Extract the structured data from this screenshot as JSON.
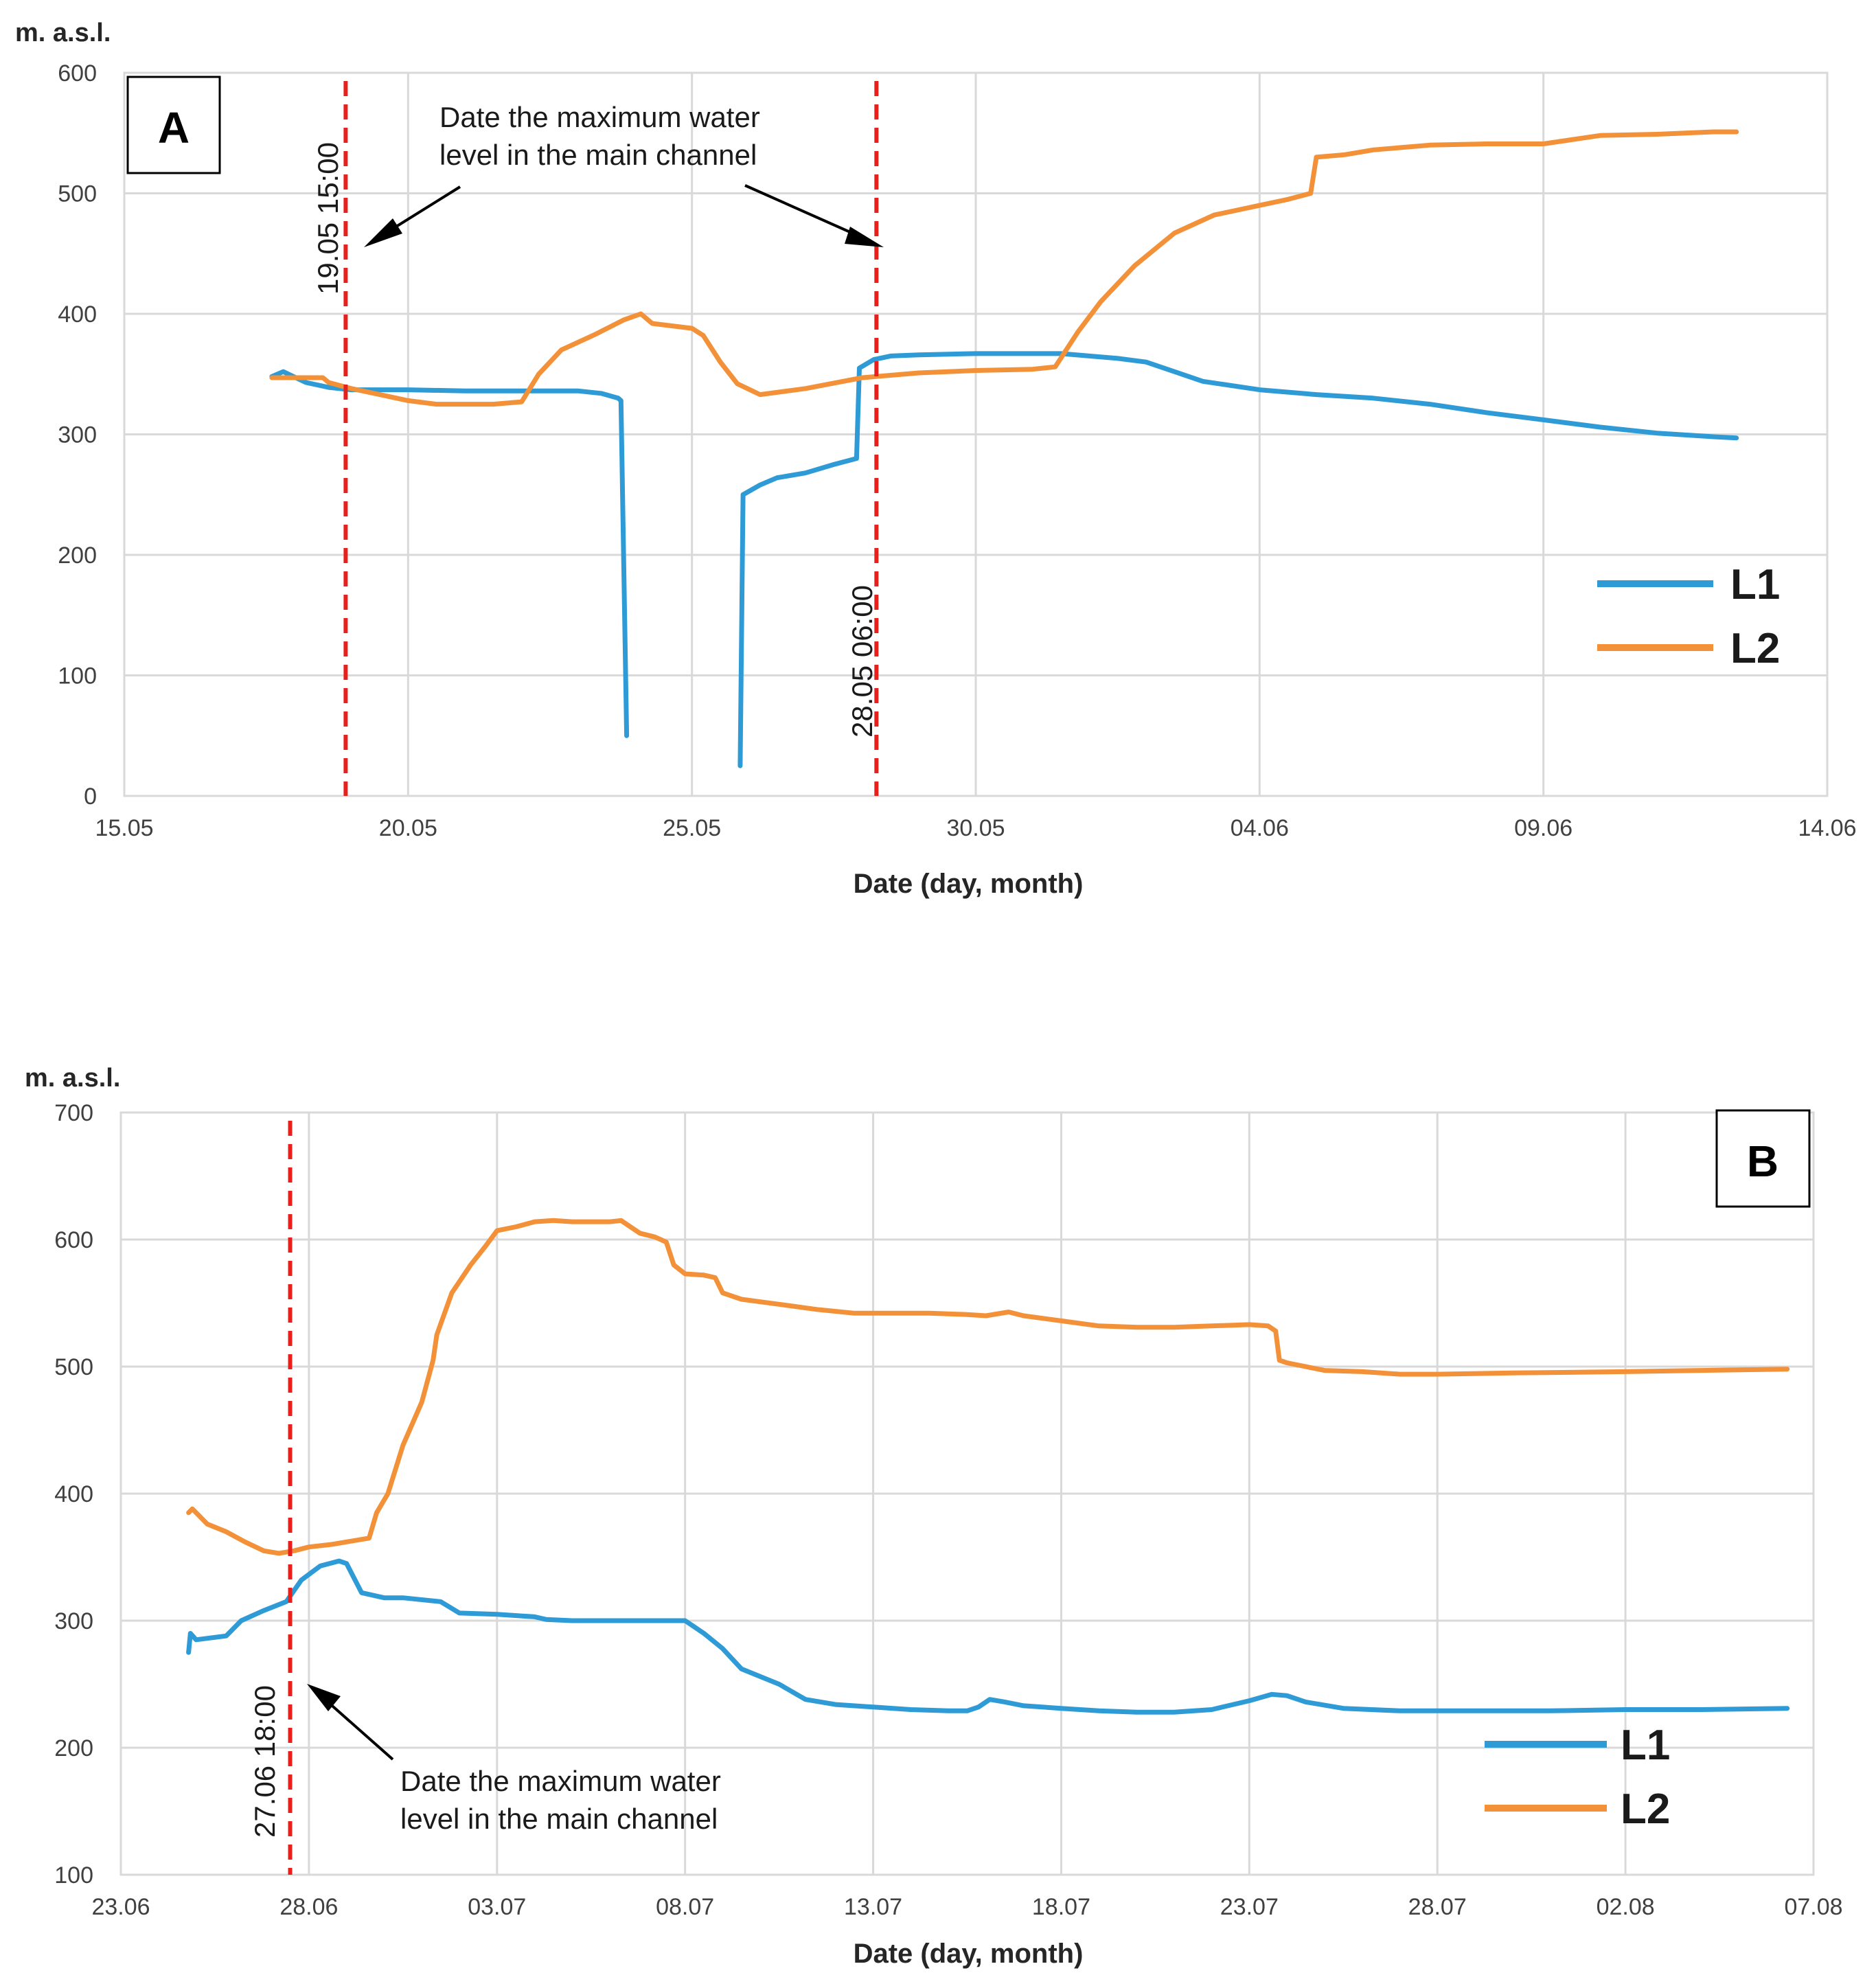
{
  "chart_data": [
    {
      "type": "line",
      "panel_label": "A",
      "ylabel": "m. a.s.l.",
      "xlabel": "Date (day, month)",
      "yticks": [
        "0",
        "100",
        "200",
        "300",
        "400",
        "500",
        "600"
      ],
      "ylim": [
        0,
        600
      ],
      "xticks": [
        "15.05",
        "20.05",
        "25.05",
        "30.05",
        "04.06",
        "09.06",
        "14.06"
      ],
      "xlim_days": [
        0,
        30
      ],
      "x_unit": "days since 15.05",
      "legend": [
        "L1",
        "L2"
      ],
      "grid": true,
      "annotation": [
        "Date the maximum water",
        "level in the main channel"
      ],
      "markers": [
        {
          "x": 3.9,
          "label": "19.05 15:00"
        },
        {
          "x": 13.25,
          "label": "28.05 06:00"
        }
      ],
      "series": [
        {
          "name": "L1",
          "color": "#2e9bd6",
          "points": [
            [
              2.6,
              348
            ],
            [
              2.8,
              352
            ],
            [
              3.2,
              343
            ],
            [
              3.6,
              339
            ],
            [
              4,
              337
            ],
            [
              5,
              337
            ],
            [
              6,
              336
            ],
            [
              7,
              336
            ],
            [
              8,
              336
            ],
            [
              8.4,
              334
            ],
            [
              8.7,
              330
            ],
            [
              8.75,
              328
            ],
            [
              8.85,
              50
            ],
            null,
            [
              10.85,
              25
            ],
            [
              10.9,
              250
            ],
            [
              11.2,
              258
            ],
            [
              11.5,
              264
            ],
            [
              12,
              268
            ],
            [
              12.5,
              275
            ],
            [
              12.9,
              280
            ],
            [
              12.95,
              355
            ],
            [
              13.2,
              362
            ],
            [
              13.5,
              365
            ],
            [
              14,
              366
            ],
            [
              15,
              367
            ],
            [
              16,
              367
            ],
            [
              16.5,
              367
            ],
            [
              17,
              365
            ],
            [
              17.5,
              363
            ],
            [
              18,
              360
            ],
            [
              18.5,
              352
            ],
            [
              19,
              344
            ],
            [
              20,
              337
            ],
            [
              21,
              333
            ],
            [
              22,
              330
            ],
            [
              23,
              325
            ],
            [
              24,
              318
            ],
            [
              25,
              312
            ],
            [
              26,
              306
            ],
            [
              27,
              301
            ],
            [
              28,
              298
            ],
            [
              28.4,
              297
            ]
          ]
        },
        {
          "name": "L2",
          "color": "#f39139",
          "points": [
            [
              2.6,
              347
            ],
            [
              3.5,
              347
            ],
            [
              3.6,
              343
            ],
            [
              4,
              338
            ],
            [
              4.5,
              333
            ],
            [
              5,
              328
            ],
            [
              5.5,
              325
            ],
            [
              6,
              325
            ],
            [
              6.5,
              325
            ],
            [
              7,
              327
            ],
            [
              7.3,
              350
            ],
            [
              7.7,
              370
            ],
            [
              8.3,
              383
            ],
            [
              8.8,
              395
            ],
            [
              9.1,
              400
            ],
            [
              9.3,
              392
            ],
            [
              10,
              388
            ],
            [
              10.2,
              382
            ],
            [
              10.5,
              360
            ],
            [
              10.8,
              342
            ],
            [
              11.2,
              333
            ],
            [
              12,
              338
            ],
            [
              13,
              347
            ],
            [
              14,
              351
            ],
            [
              15,
              353
            ],
            [
              16,
              354
            ],
            [
              16.4,
              356
            ],
            [
              16.8,
              385
            ],
            [
              17.2,
              410
            ],
            [
              17.8,
              440
            ],
            [
              18.5,
              467
            ],
            [
              19.2,
              482
            ],
            [
              20,
              490
            ],
            [
              20.5,
              495
            ],
            [
              20.9,
              500
            ],
            [
              21,
              530
            ],
            [
              21.5,
              532
            ],
            [
              22,
              536
            ],
            [
              23,
              540
            ],
            [
              24,
              541
            ],
            [
              25,
              541
            ],
            [
              26,
              548
            ],
            [
              27,
              549
            ],
            [
              28,
              551
            ],
            [
              28.4,
              551
            ]
          ]
        }
      ]
    },
    {
      "type": "line",
      "panel_label": "B",
      "ylabel": "m. a.s.l.",
      "xlabel": "Date (day, month)",
      "yticks": [
        "100",
        "200",
        "300",
        "400",
        "500",
        "600",
        "700"
      ],
      "ylim": [
        100,
        700
      ],
      "xticks": [
        "23.06",
        "28.06",
        "03.07",
        "08.07",
        "13.07",
        "18.07",
        "23.07",
        "28.07",
        "02.08",
        "07.08"
      ],
      "xlim_days": [
        0,
        45
      ],
      "x_unit": "days since 23.06",
      "legend": [
        "L1",
        "L2"
      ],
      "grid": true,
      "annotation": [
        "Date the maximum water",
        "level in the main channel"
      ],
      "markers": [
        {
          "x": 4.5,
          "label": "27.06 18:00"
        }
      ],
      "series": [
        {
          "name": "L1",
          "color": "#2e9bd6",
          "points": [
            [
              1.8,
              275
            ],
            [
              1.85,
              290
            ],
            [
              2,
              285
            ],
            [
              2.8,
              288
            ],
            [
              3.2,
              300
            ],
            [
              3.8,
              308
            ],
            [
              4.4,
              315
            ],
            [
              4.8,
              332
            ],
            [
              5.3,
              343
            ],
            [
              5.8,
              347
            ],
            [
              6,
              345
            ],
            [
              6.4,
              322
            ],
            [
              7,
              318
            ],
            [
              7.5,
              318
            ],
            [
              8.5,
              315
            ],
            [
              9,
              306
            ],
            [
              10,
              305
            ],
            [
              11,
              303
            ],
            [
              11.3,
              301
            ],
            [
              12,
              300
            ],
            [
              14,
              300
            ],
            [
              15,
              300
            ],
            [
              15.5,
              290
            ],
            [
              16,
              278
            ],
            [
              16.5,
              262
            ],
            [
              17.5,
              250
            ],
            [
              18.2,
              238
            ],
            [
              19,
              234
            ],
            [
              20,
              232
            ],
            [
              21,
              230
            ],
            [
              22,
              229
            ],
            [
              22.5,
              229
            ],
            [
              22.8,
              232
            ],
            [
              23.1,
              238
            ],
            [
              23.5,
              236
            ],
            [
              24,
              233
            ],
            [
              25,
              231
            ],
            [
              26,
              229
            ],
            [
              27,
              228
            ],
            [
              28,
              228
            ],
            [
              29,
              230
            ],
            [
              30,
              237
            ],
            [
              30.6,
              242
            ],
            [
              31,
              241
            ],
            [
              31.5,
              236
            ],
            [
              32.5,
              231
            ],
            [
              34,
              229
            ],
            [
              38,
              229
            ],
            [
              40,
              230
            ],
            [
              42,
              230
            ],
            [
              44.3,
              231
            ]
          ]
        },
        {
          "name": "L2",
          "color": "#f39139",
          "points": [
            [
              1.8,
              385
            ],
            [
              1.9,
              388
            ],
            [
              2.3,
              376
            ],
            [
              2.8,
              370
            ],
            [
              3.3,
              362
            ],
            [
              3.8,
              355
            ],
            [
              4.2,
              353
            ],
            [
              4.6,
              355
            ],
            [
              5,
              358
            ],
            [
              5.6,
              360
            ],
            [
              6,
              362
            ],
            [
              6.6,
              365
            ],
            [
              6.8,
              385
            ],
            [
              7.1,
              400
            ],
            [
              7.5,
              438
            ],
            [
              8,
              472
            ],
            [
              8.3,
              505
            ],
            [
              8.4,
              525
            ],
            [
              8.8,
              558
            ],
            [
              9.3,
              580
            ],
            [
              9.7,
              595
            ],
            [
              10,
              607
            ],
            [
              10.5,
              610
            ],
            [
              11,
              614
            ],
            [
              11.5,
              615
            ],
            [
              12,
              614
            ],
            [
              13,
              614
            ],
            [
              13.3,
              615
            ],
            [
              13.8,
              605
            ],
            [
              14.2,
              602
            ],
            [
              14.5,
              598
            ],
            [
              14.7,
              580
            ],
            [
              15,
              573
            ],
            [
              15.5,
              572
            ],
            [
              15.8,
              570
            ],
            [
              16,
              558
            ],
            [
              16.5,
              553
            ],
            [
              17.5,
              549
            ],
            [
              18.5,
              545
            ],
            [
              19.5,
              542
            ],
            [
              20.5,
              542
            ],
            [
              21.5,
              542
            ],
            [
              22.5,
              541
            ],
            [
              23,
              540
            ],
            [
              23.6,
              543
            ],
            [
              24,
              540
            ],
            [
              25,
              536
            ],
            [
              26,
              532
            ],
            [
              27,
              531
            ],
            [
              28,
              531
            ],
            [
              29,
              532
            ],
            [
              30,
              533
            ],
            [
              30.5,
              532
            ],
            [
              30.7,
              528
            ],
            [
              30.8,
              505
            ],
            [
              31,
              503
            ],
            [
              32,
              497
            ],
            [
              33,
              496
            ],
            [
              34,
              494
            ],
            [
              35,
              494
            ],
            [
              37,
              495
            ],
            [
              40,
              496
            ],
            [
              42,
              497
            ],
            [
              44.3,
              498
            ]
          ]
        }
      ]
    }
  ]
}
